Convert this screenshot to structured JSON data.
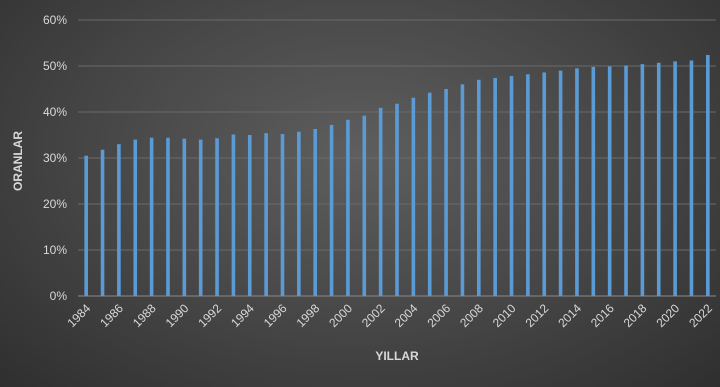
{
  "chart_data": {
    "type": "bar",
    "title": "",
    "xlabel": "YILLAR",
    "ylabel": "ORANLAR",
    "ylim": [
      0,
      60
    ],
    "y_unit": "%",
    "y_ticks": [
      "0%",
      "10%",
      "20%",
      "30%",
      "40%",
      "50%",
      "60%"
    ],
    "x_tick_labels": [
      "1984",
      "1986",
      "1988",
      "1990",
      "1992",
      "1994",
      "1996",
      "1998",
      "2000",
      "2002",
      "2004",
      "2006",
      "2008",
      "2010",
      "2012",
      "2014",
      "2016",
      "2018",
      "2020",
      "2022"
    ],
    "grid": true,
    "legend": "none",
    "bar_color": "#5b9bd5",
    "categories": [
      "1984",
      "1985",
      "1986",
      "1987",
      "1988",
      "1989",
      "1990",
      "1991",
      "1992",
      "1993",
      "1994",
      "1995",
      "1996",
      "1997",
      "1998",
      "1999",
      "2000",
      "2001",
      "2002",
      "2003",
      "2004",
      "2005",
      "2006",
      "2007",
      "2008",
      "2009",
      "2010",
      "2011",
      "2012",
      "2013",
      "2014",
      "2015",
      "2016",
      "2017",
      "2018",
      "2019",
      "2020",
      "2021",
      "2022"
    ],
    "values": [
      30.5,
      31.8,
      33.0,
      34.0,
      34.4,
      34.4,
      34.2,
      34.0,
      34.3,
      35.1,
      35.0,
      35.4,
      35.2,
      35.7,
      36.3,
      37.2,
      38.3,
      39.2,
      40.9,
      41.8,
      43.1,
      44.2,
      45.0,
      46.0,
      47.0,
      47.4,
      47.8,
      48.2,
      48.6,
      49.0,
      49.5,
      49.8,
      49.9,
      50.1,
      50.4,
      50.7,
      51.0,
      51.2,
      52.4
    ]
  }
}
